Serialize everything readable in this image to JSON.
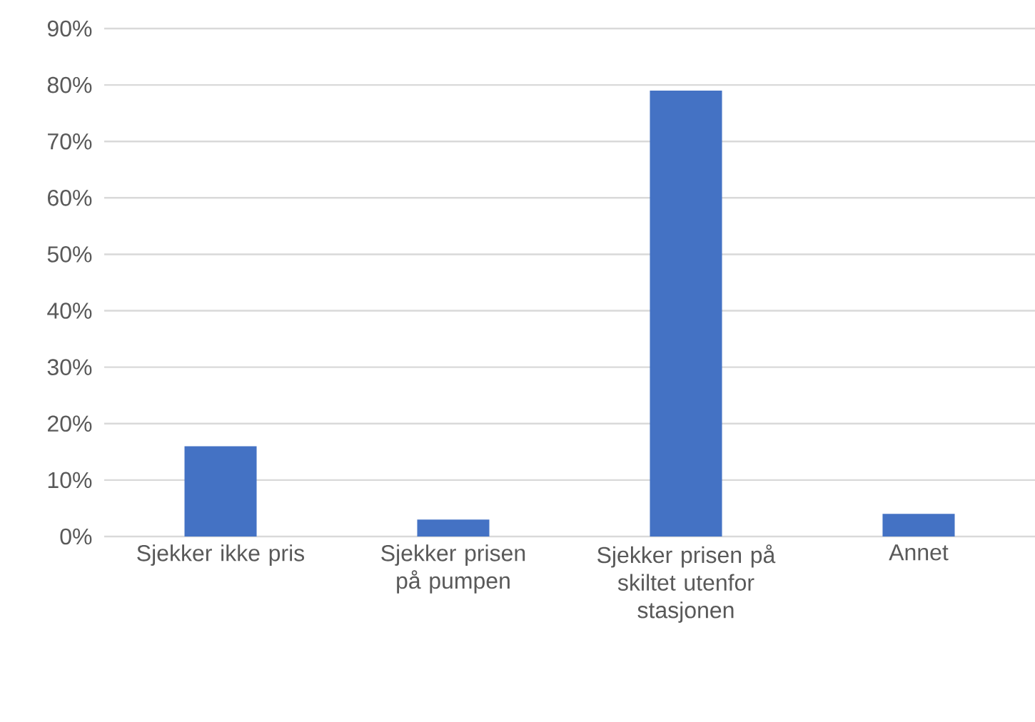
{
  "chart_data": {
    "type": "bar",
    "categories": [
      "Sjekker ikke pris",
      "Sjekker prisen på pumpen",
      "Sjekker prisen på skiltet utenfor stasjonen",
      "Annet"
    ],
    "values": [
      16,
      3,
      79,
      4
    ],
    "color": "#4472c4",
    "ylim": [
      0,
      90
    ],
    "yticks": [
      {
        "value": 0,
        "label": "0%"
      },
      {
        "value": 10,
        "label": "10%"
      },
      {
        "value": 20,
        "label": "20%"
      },
      {
        "value": 30,
        "label": "30%"
      },
      {
        "value": 40,
        "label": "40%"
      },
      {
        "value": 50,
        "label": "50%"
      },
      {
        "value": 60,
        "label": "60%"
      },
      {
        "value": 70,
        "label": "70%"
      },
      {
        "value": 80,
        "label": "80%"
      },
      {
        "value": 90,
        "label": "90%"
      }
    ],
    "grid": "y"
  }
}
